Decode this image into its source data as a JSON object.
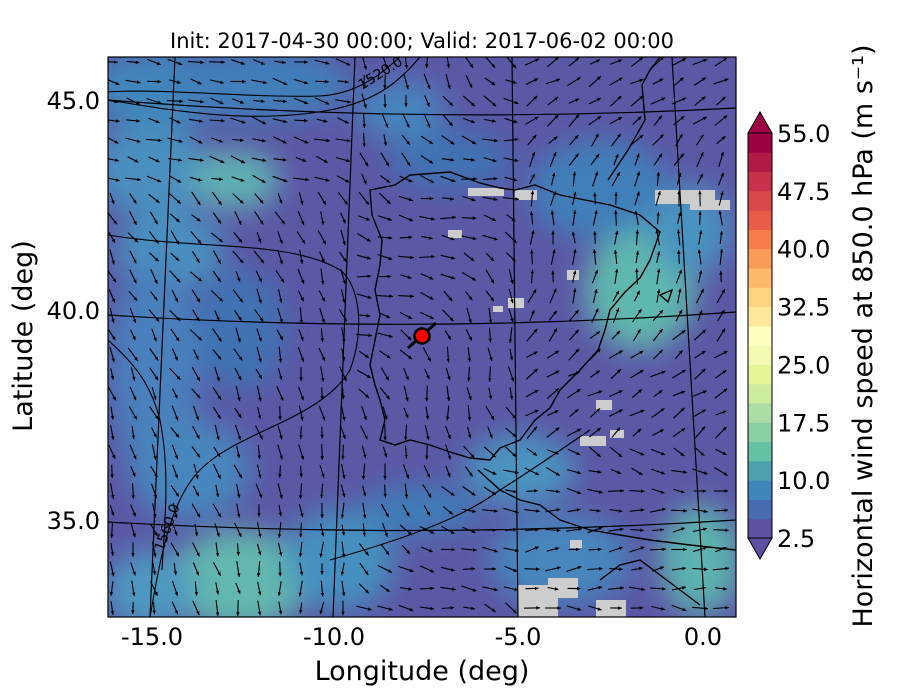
{
  "title": "Init: 2017-04-30 00:00; Valid: 2017-06-02 00:00",
  "xlabel": "Longitude (deg)",
  "ylabel": "Latitude (deg)",
  "x_ticks": [
    "-15.0",
    "-10.0",
    "-5.0",
    "0.0"
  ],
  "y_ticks": [
    "45.0",
    "40.0",
    "35.0"
  ],
  "colorbar": {
    "label": "Horizontal wind speed at 850.0 hPa (m s⁻¹)",
    "min": 2.5,
    "max": 55.0,
    "step": 2.5,
    "tick_labels": [
      "55.0",
      "47.5",
      "40.0",
      "32.5",
      "25.0",
      "17.5",
      "10.0",
      "2.5"
    ],
    "extend": "both"
  },
  "contour_labels": [
    "1520.0",
    "1560.0"
  ],
  "marker": {
    "lon": -7.7,
    "lat": 39.3,
    "color": "#ff0000"
  },
  "colors": {
    "background_field": "#5a5aa8",
    "missing": "#cccccc"
  }
}
